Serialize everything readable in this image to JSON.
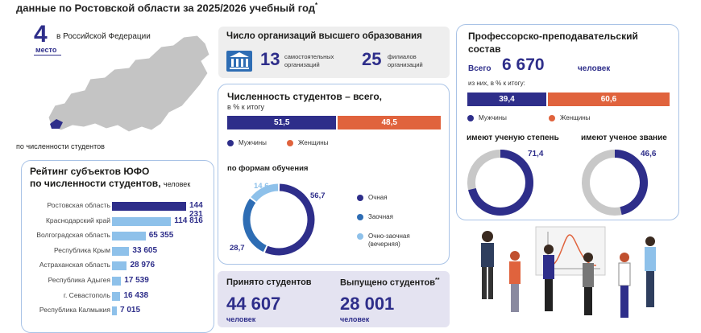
{
  "title": "данные по Ростовской области за 2025/2026 учебный год",
  "title_mark": "*",
  "rank": {
    "number": "4",
    "place_label": "место",
    "context": "в Российской Федерации",
    "caption": "по численности студентов"
  },
  "orgs": {
    "title": "Число организаций высшего образования",
    "independent_count": "13",
    "independent_label": "самостоятельных организаций",
    "branches_count": "25",
    "branches_label": "филиалов организаций"
  },
  "students": {
    "title": "Численность студентов – всего,",
    "subtitle": "в % к итогу",
    "men_pct": 51.5,
    "women_pct": 48.5,
    "men_label": "51,5",
    "women_label": "48,5",
    "legend_men": "Мужчины",
    "legend_women": "Женщины",
    "forms_title": "по формам обучения",
    "forms": [
      {
        "label": "Очная",
        "value": 56.7,
        "text": "56,7",
        "color": "#2e2e8a"
      },
      {
        "label": "Заочная",
        "value": 28.7,
        "text": "28,7",
        "color": "#2e6db4"
      },
      {
        "label": "Очно-заочная (вечерняя)",
        "value": 14.6,
        "text": "14,6",
        "color": "#8ec1ea"
      }
    ]
  },
  "faculty": {
    "title": "Профессорско-преподавательский состав",
    "total_label": "Всего",
    "total": "6 670",
    "unit": "человек",
    "share_note": "из них, в % к итогу:",
    "men_pct": 39.4,
    "women_pct": 60.6,
    "men_label": "39,4",
    "women_label": "60,6",
    "legend_men": "Мужчины",
    "legend_women": "Женщины",
    "degree_title": "имеют ученую степень",
    "degree_value": 71.4,
    "degree_label": "71,4",
    "rank_title": "имеют ученое звание",
    "rank_value": 46.6,
    "rank_label": "46,6"
  },
  "rating": {
    "title_line1": "Рейтинг субъектов ЮФО",
    "title_line2": "по численности студентов,",
    "unit": "человек",
    "max": 144231,
    "items": [
      {
        "region": "Ростовская область",
        "value": 144231,
        "text": "144 231"
      },
      {
        "region": "Краснодарский край",
        "value": 114816,
        "text": "114 816"
      },
      {
        "region": "Волгоградская область",
        "value": 65355,
        "text": "65 355"
      },
      {
        "region": "Республика Крым",
        "value": 33605,
        "text": "33 605"
      },
      {
        "region": "Астраханская область",
        "value": 28976,
        "text": "28 976"
      },
      {
        "region": "Республика Адыгея",
        "value": 17539,
        "text": "17 539"
      },
      {
        "region": "г. Севастополь",
        "value": 16438,
        "text": "16 438"
      },
      {
        "region": "Республика Калмыкия",
        "value": 7015,
        "text": "7 015"
      }
    ]
  },
  "admitted": {
    "title": "Принято студентов",
    "value": "44 607",
    "unit": "человек"
  },
  "graduated": {
    "title": "Выпущено студентов",
    "mark": "**",
    "value": "28 001",
    "unit": "человек"
  },
  "colors": {
    "navy": "#2e2e8a",
    "orange": "#e0633d",
    "light_blue": "#8ec1ea",
    "mid_blue": "#2e6db4",
    "gray_ring": "#c8c8c8"
  }
}
